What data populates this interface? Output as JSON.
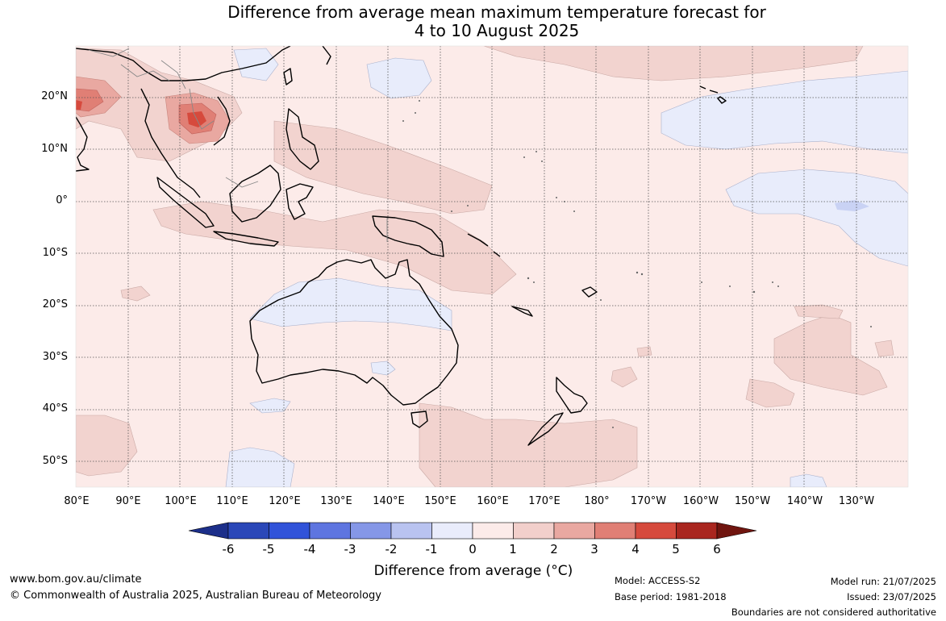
{
  "title": {
    "line1": "Difference from average mean maximum temperature forecast for",
    "line2": "4 to 10 August 2025"
  },
  "lat_labels": [
    "20°N",
    "10°N",
    "0°",
    "10°S",
    "20°S",
    "30°S",
    "40°S",
    "50°S"
  ],
  "lon_labels": [
    "80°E",
    "90°E",
    "100°E",
    "110°E",
    "120°E",
    "130°E",
    "140°E",
    "150°E",
    "160°E",
    "170°E",
    "180°",
    "170°W",
    "160°W",
    "150°W",
    "140°W",
    "130°W"
  ],
  "colorbar": {
    "ticks": [
      "-6",
      "-5",
      "-4",
      "-3",
      "-2",
      "-1",
      "0",
      "1",
      "2",
      "3",
      "4",
      "5",
      "6"
    ],
    "colors": [
      "#1c2f8a",
      "#2a47b8",
      "#3153d9",
      "#5e75e0",
      "#8597e7",
      "#b9c3f0",
      "#e9ecfb",
      "#fcebe9",
      "#f2cfcb",
      "#e9a8a1",
      "#e07f75",
      "#d64a3d",
      "#a9261f",
      "#70150f"
    ],
    "title": "Difference from average (°C)"
  },
  "footer": {
    "url": "www.bom.gov.au/climate",
    "copyright": "© Commonwealth of Australia 2025, Australian Bureau of Meteorology",
    "model": "Model: ACCESS-S2",
    "base_period": "Base period: 1981-2018",
    "model_run": "Model run: 21/07/2025",
    "issued": "Issued: 23/07/2025",
    "disclaimer": "Boundaries are not considered authoritative"
  },
  "map_colors": {
    "background": "#fcebe9",
    "warm_1_2": "#f2d3cf",
    "warm_2_3": "#e9a8a1",
    "warm_3_4": "#e07f75",
    "warm_4_5": "#d64a3d",
    "cool_0_1": "#e8ecfb",
    "cool_1_2": "#c9d2f4"
  }
}
